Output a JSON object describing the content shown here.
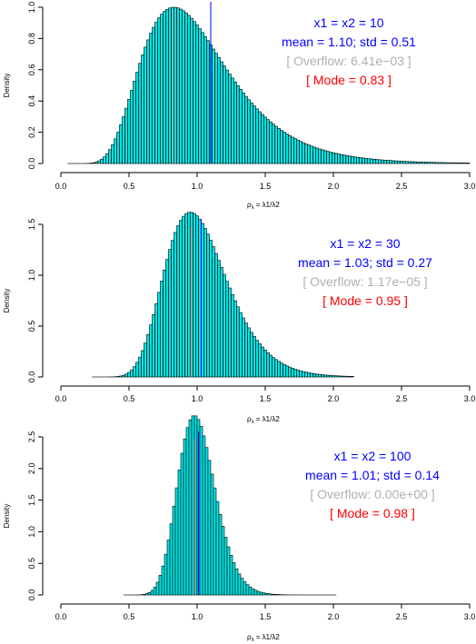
{
  "chart_data": [
    {
      "type": "histogram",
      "ylabel": "Density",
      "xlabel_base": "ρ",
      "xlabel_sub": "λ",
      "xlabel_rhs": "λ1/λ2",
      "xlim": [
        0.0,
        3.0
      ],
      "ylim": [
        0.0,
        1.0
      ],
      "x_ticks": [
        "0.0",
        "0.5",
        "1.0",
        "1.5",
        "2.0",
        "2.5",
        "3.0"
      ],
      "y_ticks": [
        "0.0",
        "0.2",
        "0.4",
        "0.6",
        "0.8",
        "1.0"
      ],
      "bin_width": 0.02,
      "dist": {
        "mode": 0.83,
        "sigma_log": 0.38,
        "peak": 1.0,
        "xmin": 0.05,
        "xmax": 3.0
      },
      "mean": 1.1,
      "mode": 0.83,
      "annotations": {
        "params": "x1 =  x2 = 10",
        "stats": "mean = 1.10;  std = 0.51",
        "overflow": "[ Overflow: 6.41e−03 ]",
        "mode_label": "[ Mode = 0.83 ]"
      }
    },
    {
      "type": "histogram",
      "ylabel": "Density",
      "xlabel_base": "ρ",
      "xlabel_sub": "λ",
      "xlabel_rhs": "λ1/λ2",
      "xlim": [
        0.0,
        3.0
      ],
      "ylim": [
        0.0,
        1.5
      ],
      "x_ticks": [
        "0.0",
        "0.5",
        "1.0",
        "1.5",
        "2.0",
        "2.5",
        "3.0"
      ],
      "y_ticks": [
        "0.0",
        "0.5",
        "1.0",
        "1.5"
      ],
      "bin_width": 0.02,
      "dist": {
        "mode": 0.95,
        "sigma_log": 0.24,
        "peak": 1.62,
        "xmin": 0.23,
        "xmax": 2.15
      },
      "mean": 1.03,
      "mode": 0.95,
      "annotations": {
        "params": "x1 =  x2 = 30",
        "stats": "mean = 1.03;  std = 0.27",
        "overflow": "[ Overflow: 1.17e−05 ]",
        "mode_label": "[ Mode = 0.95 ]"
      }
    },
    {
      "type": "histogram",
      "ylabel": "Density",
      "xlabel_base": "ρ",
      "xlabel_sub": "λ",
      "xlabel_rhs": "λ1/λ2",
      "xlim": [
        0.0,
        3.0
      ],
      "ylim": [
        0.0,
        2.5
      ],
      "x_ticks": [
        "0.0",
        "0.5",
        "1.0",
        "1.5",
        "2.0",
        "2.5",
        "3.0"
      ],
      "y_ticks": [
        "0.0",
        "0.5",
        "1.0",
        "1.5",
        "2.0",
        "2.5"
      ],
      "bin_width": 0.02,
      "dist": {
        "mode": 0.98,
        "sigma_log": 0.14,
        "peak": 2.84,
        "xmin": 0.46,
        "xmax": 2.02
      },
      "mean": 1.01,
      "mode": 0.98,
      "annotations": {
        "params": "x1 =  x2 = 100",
        "stats": "mean = 1.01;  std = 0.14",
        "overflow": "[ Overflow: 0.00e+00 ]",
        "mode_label": "[ Mode = 0.98 ]"
      }
    }
  ],
  "colors": {
    "bar_fill": "#00e5e5",
    "bar_stroke": "#000000",
    "mean_line": "#0000ff",
    "mode_line": "#ff0000",
    "annot_main": "#0000ff",
    "annot_overflow": "#b0b0b0",
    "annot_mode": "#ff0000"
  }
}
